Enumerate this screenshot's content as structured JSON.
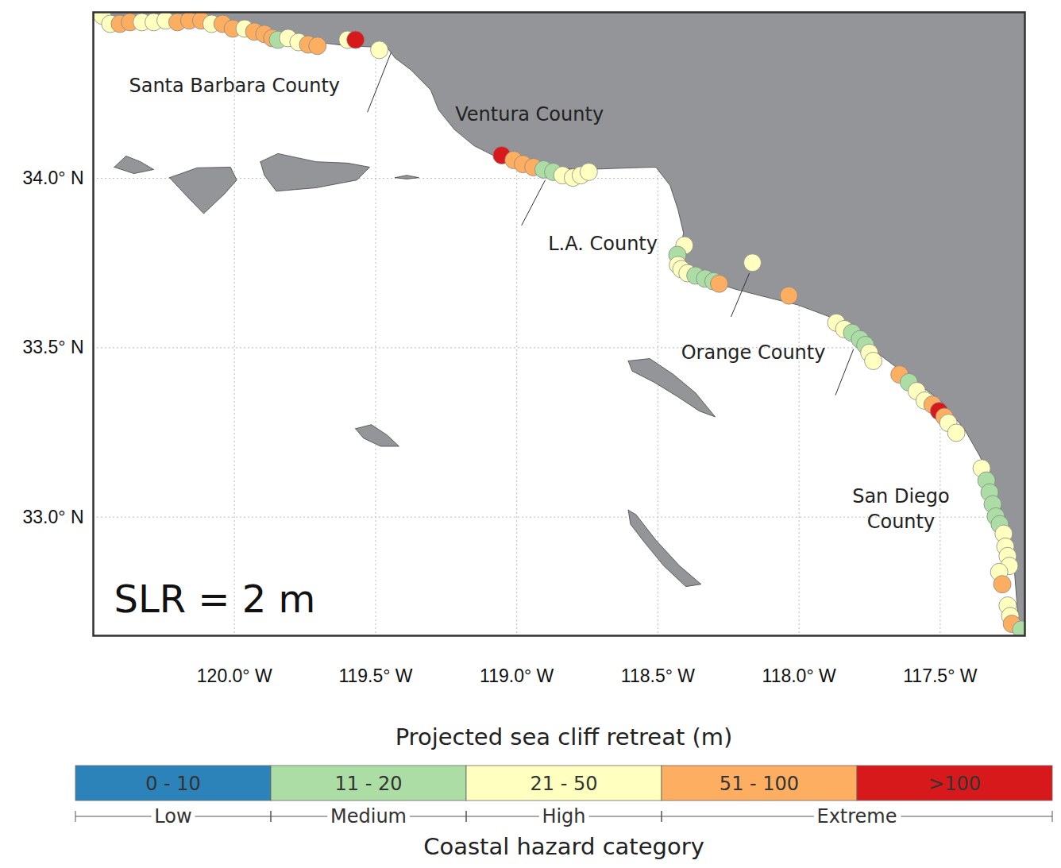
{
  "chart_data": {
    "type": "map",
    "title": "SLR = 2 m",
    "xlim": [
      -120.5,
      -117.2
    ],
    "ylim": [
      32.65,
      34.49
    ],
    "xticks": [
      {
        "value": -120,
        "label": "120.0° W"
      },
      {
        "value": -119.5,
        "label": "119.5° W"
      },
      {
        "value": -119,
        "label": "119.0° W"
      },
      {
        "value": -118.5,
        "label": "118.5° W"
      },
      {
        "value": -118,
        "label": "118.0° W"
      },
      {
        "value": -117.5,
        "label": "117.5° W"
      }
    ],
    "yticks": [
      {
        "value": 33,
        "label": "33.0° N"
      },
      {
        "value": 33.5,
        "label": "33.5° N"
      },
      {
        "value": 34,
        "label": "34.0° N"
      }
    ],
    "grid": true,
    "colorbar": {
      "title": "Projected sea cliff retreat (m)",
      "classes": [
        "0 - 10",
        "11 - 20",
        "21 - 50",
        "51 - 100",
        ">100"
      ],
      "colors": [
        "#2b83ba",
        "#abdda4",
        "#ffffbf",
        "#fdae61",
        "#d7191c"
      ]
    },
    "hazard": {
      "title": "Coastal hazard category",
      "categories": [
        {
          "name": "Low",
          "classes": [
            "0 - 10"
          ]
        },
        {
          "name": "Medium",
          "classes": [
            "11 - 20"
          ]
        },
        {
          "name": "High",
          "classes": [
            "21 - 50"
          ]
        },
        {
          "name": "Extreme",
          "classes": [
            "51 - 100",
            ">100"
          ]
        }
      ]
    },
    "land": [
      [
        -120.5,
        34.49
      ],
      [
        -120.468,
        34.48
      ],
      [
        -120.272,
        34.466
      ],
      [
        -120.048,
        34.456
      ],
      [
        -119.88,
        34.438
      ],
      [
        -119.711,
        34.402
      ],
      [
        -119.599,
        34.391
      ],
      [
        -119.459,
        34.386
      ],
      [
        -119.431,
        34.355
      ],
      [
        -119.375,
        34.32
      ],
      [
        -119.305,
        34.261
      ],
      [
        -119.277,
        34.202
      ],
      [
        -119.221,
        34.144
      ],
      [
        -119.151,
        34.096
      ],
      [
        -119.067,
        34.061
      ],
      [
        -118.983,
        34.042
      ],
      [
        -118.871,
        34.031
      ],
      [
        -118.759,
        34.026
      ],
      [
        -118.591,
        34.031
      ],
      [
        -118.507,
        34.033
      ],
      [
        -118.457,
        33.979
      ],
      [
        -118.429,
        33.908
      ],
      [
        -118.409,
        33.838
      ],
      [
        -118.423,
        33.791
      ],
      [
        -118.395,
        33.744
      ],
      [
        -118.311,
        33.696
      ],
      [
        -118.227,
        33.673
      ],
      [
        -118.115,
        33.649
      ],
      [
        -118.003,
        33.626
      ],
      [
        -117.891,
        33.591
      ],
      [
        -117.793,
        33.544
      ],
      [
        -117.723,
        33.485
      ],
      [
        -117.611,
        33.414
      ],
      [
        -117.499,
        33.344
      ],
      [
        -117.415,
        33.261
      ],
      [
        -117.359,
        33.179
      ],
      [
        -117.308,
        33.085
      ],
      [
        -117.269,
        32.979
      ],
      [
        -117.241,
        32.885
      ],
      [
        -117.23,
        32.767
      ],
      [
        -117.218,
        32.65
      ],
      [
        -117.2,
        32.65
      ],
      [
        -117.2,
        34.49
      ],
      [
        -120.5,
        34.49
      ]
    ],
    "islands": [
      [
        [
          -120.426,
          34.033
        ],
        [
          -120.384,
          34.066
        ],
        [
          -120.333,
          34.049
        ],
        [
          -120.286,
          34.026
        ],
        [
          -120.356,
          34.014
        ]
      ],
      [
        [
          -120.23,
          34.002
        ],
        [
          -120.132,
          34.031
        ],
        [
          -120.014,
          34.033
        ],
        [
          -119.992,
          33.995
        ],
        [
          -120.034,
          33.955
        ],
        [
          -120.109,
          33.896
        ],
        [
          -120.165,
          33.944
        ]
      ],
      [
        [
          -119.908,
          34.049
        ],
        [
          -119.846,
          34.073
        ],
        [
          -119.711,
          34.049
        ],
        [
          -119.599,
          34.045
        ],
        [
          -119.521,
          34.033
        ],
        [
          -119.566,
          33.995
        ],
        [
          -119.711,
          33.972
        ],
        [
          -119.852,
          33.962
        ],
        [
          -119.894,
          34.009
        ]
      ],
      [
        [
          -119.431,
          34.002
        ],
        [
          -119.39,
          34.009
        ],
        [
          -119.347,
          34.002
        ],
        [
          -119.39,
          33.998
        ]
      ],
      [
        [
          -119.571,
          33.261
        ],
        [
          -119.515,
          33.273
        ],
        [
          -119.459,
          33.242
        ],
        [
          -119.417,
          33.209
        ],
        [
          -119.482,
          33.209
        ],
        [
          -119.543,
          33.233
        ]
      ],
      [
        [
          -118.605,
          33.461
        ],
        [
          -118.529,
          33.468
        ],
        [
          -118.445,
          33.421
        ],
        [
          -118.367,
          33.367
        ],
        [
          -118.297,
          33.296
        ],
        [
          -118.353,
          33.313
        ],
        [
          -118.429,
          33.355
        ],
        [
          -118.513,
          33.398
        ],
        [
          -118.591,
          33.431
        ]
      ],
      [
        [
          -118.605,
          33.021
        ],
        [
          -118.577,
          33.007
        ],
        [
          -118.507,
          32.932
        ],
        [
          -118.423,
          32.856
        ],
        [
          -118.347,
          32.802
        ],
        [
          -118.401,
          32.795
        ],
        [
          -118.479,
          32.856
        ],
        [
          -118.549,
          32.927
        ],
        [
          -118.597,
          32.979
        ]
      ]
    ],
    "labels": [
      {
        "text": "Santa Barbara County",
        "lon": -120.0,
        "lat": 34.278
      },
      {
        "text": "Ventura County",
        "lon": -118.955,
        "lat": 34.195
      },
      {
        "text": "L.A. County",
        "lon": -118.695,
        "lat": 33.812
      },
      {
        "text": "Orange County",
        "lon": -118.162,
        "lat": 33.492
      },
      {
        "text": "San Diego\nCounty",
        "lon": -117.639,
        "lat": 33.03
      }
    ],
    "leader_lines": [
      [
        [
          -119.445,
          34.372
        ],
        [
          -119.529,
          34.195
        ]
      ],
      [
        [
          -118.899,
          33.995
        ],
        [
          -118.983,
          33.861
        ]
      ],
      [
        [
          -118.176,
          33.72
        ],
        [
          -118.241,
          33.591
        ]
      ],
      [
        [
          -117.807,
          33.496
        ],
        [
          -117.871,
          33.36
        ]
      ]
    ],
    "points": {
      "lon": [
        -120.468,
        -120.44,
        -120.406,
        -120.37,
        -120.328,
        -120.286,
        -120.244,
        -120.202,
        -120.16,
        -120.118,
        -120.081,
        -120.042,
        -120.006,
        -119.964,
        -119.93,
        -119.894,
        -119.866,
        -119.846,
        -119.81,
        -119.773,
        -119.739,
        -119.706,
        -119.599,
        -119.571,
        -119.487,
        -119.053,
        -119.011,
        -118.978,
        -118.941,
        -118.905,
        -118.871,
        -118.838,
        -118.801,
        -118.773,
        -118.745,
        -118.406,
        -118.431,
        -118.429,
        -118.417,
        -118.395,
        -118.367,
        -118.333,
        -118.303,
        -118.283,
        -118.165,
        -118.036,
        -117.868,
        -117.84,
        -117.812,
        -117.784,
        -117.765,
        -117.751,
        -117.737,
        -117.644,
        -117.611,
        -117.583,
        -117.555,
        -117.527,
        -117.504,
        -117.485,
        -117.471,
        -117.443,
        -117.353,
        -117.336,
        -117.325,
        -117.314,
        -117.303,
        -117.289,
        -117.275,
        -117.269,
        -117.261,
        -117.255,
        -117.291,
        -117.28,
        -117.261,
        -117.252,
        -117.246,
        -117.213
      ],
      "lat": [
        34.48,
        34.456,
        34.456,
        34.461,
        34.461,
        34.461,
        34.466,
        34.461,
        34.466,
        34.466,
        34.456,
        34.456,
        34.442,
        34.442,
        34.433,
        34.426,
        34.414,
        34.409,
        34.414,
        34.402,
        34.395,
        34.391,
        34.409,
        34.409,
        34.379,
        34.068,
        34.054,
        34.042,
        34.033,
        34.026,
        34.019,
        34.009,
        34.002,
        34.009,
        34.019,
        33.802,
        33.774,
        33.744,
        33.732,
        33.72,
        33.713,
        33.704,
        33.696,
        33.689,
        33.751,
        33.654,
        33.574,
        33.555,
        33.544,
        33.525,
        33.508,
        33.485,
        33.461,
        33.421,
        33.398,
        33.372,
        33.344,
        33.332,
        33.313,
        33.296,
        33.278,
        33.249,
        33.144,
        33.108,
        33.073,
        33.038,
        33.002,
        32.979,
        32.951,
        32.913,
        32.885,
        32.856,
        32.838,
        32.802,
        32.739,
        32.708,
        32.685,
        32.668
      ],
      "category": [
        "21 - 50",
        "21 - 50",
        "51 - 100",
        "51 - 100",
        "21 - 50",
        "21 - 50",
        "21 - 50",
        "51 - 100",
        "51 - 100",
        "51 - 100",
        "21 - 50",
        "51 - 100",
        "51 - 100",
        "21 - 50",
        "51 - 100",
        "51 - 100",
        "51 - 100",
        "11 - 20",
        "21 - 50",
        "21 - 50",
        "51 - 100",
        "51 - 100",
        "21 - 50",
        ">100",
        "21 - 50",
        ">100",
        "51 - 100",
        "51 - 100",
        "51 - 100",
        "11 - 20",
        "11 - 20",
        "21 - 50",
        "21 - 50",
        "21 - 50",
        "21 - 50",
        "21 - 50",
        "11 - 20",
        "21 - 50",
        "21 - 50",
        "21 - 50",
        "11 - 20",
        "11 - 20",
        "11 - 20",
        "51 - 100",
        "21 - 50",
        "51 - 100",
        "21 - 50",
        "21 - 50",
        "11 - 20",
        "11 - 20",
        "11 - 20",
        "21 - 50",
        "21 - 50",
        "51 - 100",
        "11 - 20",
        "21 - 50",
        "21 - 50",
        "51 - 100",
        ">100",
        "51 - 100",
        "21 - 50",
        "21 - 50",
        "21 - 50",
        "11 - 20",
        "11 - 20",
        "11 - 20",
        "11 - 20",
        "11 - 20",
        "21 - 50",
        "21 - 50",
        "21 - 50",
        "21 - 50",
        "21 - 50",
        "51 - 100",
        "21 - 50",
        "21 - 50",
        "51 - 100",
        "11 - 20"
      ]
    }
  }
}
